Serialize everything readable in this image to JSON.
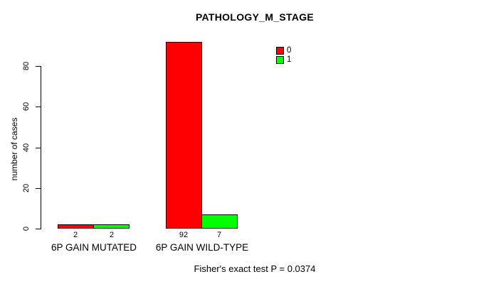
{
  "chart_data": {
    "type": "bar",
    "title": "PATHOLOGY_M_STAGE",
    "ylabel": "number of cases",
    "xlabel": "",
    "categories": [
      "6P GAIN MUTATED",
      "6P GAIN WILD-TYPE"
    ],
    "series": [
      {
        "name": "0",
        "color": "#FF0000",
        "values": [
          2,
          92
        ]
      },
      {
        "name": "1",
        "color": "#00FF00",
        "values": [
          2,
          7
        ]
      }
    ],
    "ylim": [
      0,
      80
    ],
    "yticks": [
      0,
      20,
      40,
      60,
      80
    ],
    "grid": false,
    "legend_position": "top-right",
    "footnote": "Fisher's exact test P = 0.0374"
  }
}
